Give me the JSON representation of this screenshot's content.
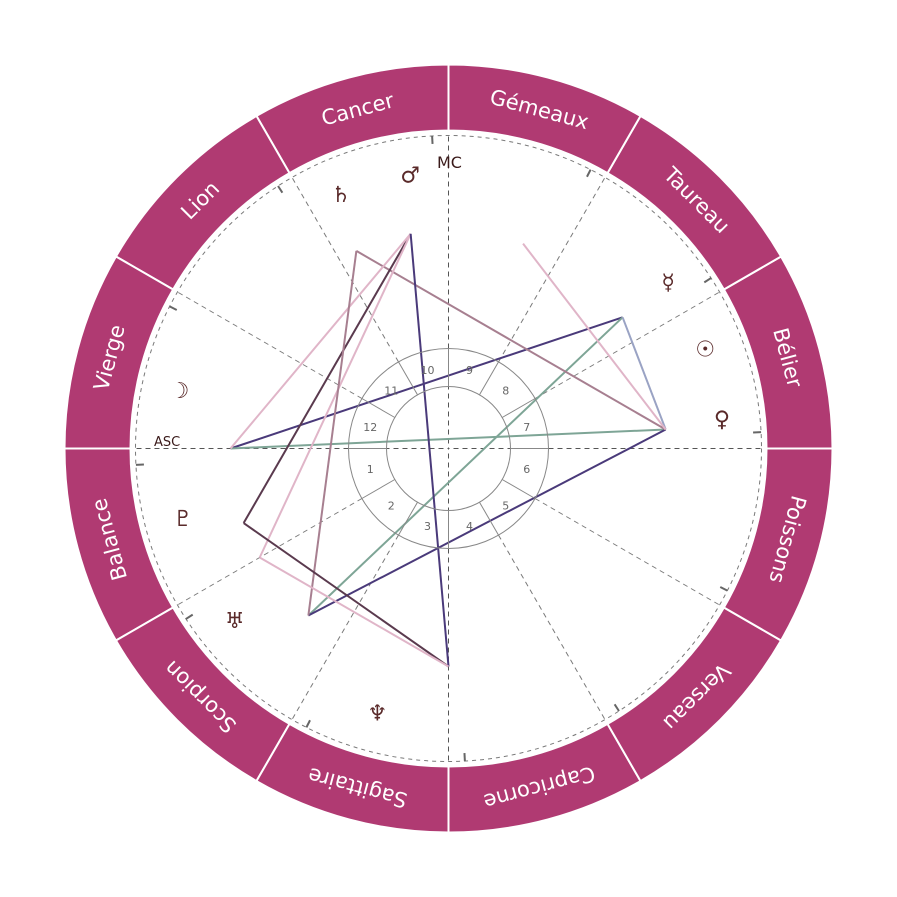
{
  "colors": {
    "ring": "#b03a72",
    "ring_text": "#ffffff",
    "glyph": "#5a2a2a",
    "dashed": "#7a7a7a"
  },
  "zodiac": [
    {
      "name": "Bélier",
      "angle": 15
    },
    {
      "name": "Taureau",
      "angle": 45
    },
    {
      "name": "Gémeaux",
      "angle": 75
    },
    {
      "name": "Cancer",
      "angle": 105
    },
    {
      "name": "Lion",
      "angle": 135
    },
    {
      "name": "Vierge",
      "angle": 165
    },
    {
      "name": "Balance",
      "angle": 195
    },
    {
      "name": "Scorpion",
      "angle": 225
    },
    {
      "name": "Sagittaire",
      "angle": 255
    },
    {
      "name": "Capricorne",
      "angle": 285
    },
    {
      "name": "Verseau",
      "angle": 315
    },
    {
      "name": "Poissons",
      "angle": 345
    }
  ],
  "axes": {
    "asc": "ASC",
    "mc": "MC"
  },
  "houses": [
    "1",
    "2",
    "3",
    "4",
    "5",
    "6",
    "7",
    "8",
    "9",
    "10",
    "11",
    "12"
  ],
  "planets": [
    {
      "key": "sun",
      "icon": "sun-icon",
      "glyph": "☉",
      "angle": 21
    },
    {
      "key": "mercury",
      "icon": "mercury-icon",
      "glyph": "☿",
      "angle": 37
    },
    {
      "key": "venus",
      "icon": "venus-icon",
      "glyph": "♀",
      "angle": 6
    },
    {
      "key": "mars",
      "icon": "mars-icon",
      "glyph": "♂",
      "angle": 98
    },
    {
      "key": "saturn",
      "icon": "saturn-icon",
      "glyph": "♄",
      "angle": 113
    },
    {
      "key": "moon",
      "icon": "moon-icon",
      "glyph": "☽",
      "angle": 168
    },
    {
      "key": "pluto",
      "icon": "pluto-icon",
      "glyph": "♇",
      "angle": 195
    },
    {
      "key": "uranus",
      "icon": "uranus-icon",
      "glyph": "♅",
      "angle": 219
    },
    {
      "key": "neptune",
      "icon": "neptune-icon",
      "glyph": "♆",
      "angle": 255
    }
  ],
  "aspects": [
    {
      "a": 37,
      "b": 180,
      "color": "#4a3a7a"
    },
    {
      "a": 37,
      "b": 230,
      "color": "#7ea596"
    },
    {
      "a": 37,
      "b": 5,
      "color": "#9aa3c4"
    },
    {
      "a": 5,
      "b": 180,
      "color": "#7ea596"
    },
    {
      "a": 5,
      "b": 230,
      "color": "#4a3a7a"
    },
    {
      "a": 5,
      "b": 115,
      "color": "#a77f90"
    },
    {
      "a": 5,
      "b": 70,
      "color": "#e0b5c8"
    },
    {
      "a": 100,
      "b": 200,
      "color": "#5a3a4e"
    },
    {
      "a": 100,
      "b": 180,
      "color": "#e0b5c8"
    },
    {
      "a": 100,
      "b": 210,
      "color": "#e0b5c8"
    },
    {
      "a": 115,
      "b": 230,
      "color": "#a77f90"
    },
    {
      "a": 200,
      "b": 270,
      "color": "#5a3a4e"
    },
    {
      "a": 100,
      "b": 270,
      "color": "#4a3a7a"
    },
    {
      "a": 210,
      "b": 270,
      "color": "#e0b5c8"
    }
  ]
}
